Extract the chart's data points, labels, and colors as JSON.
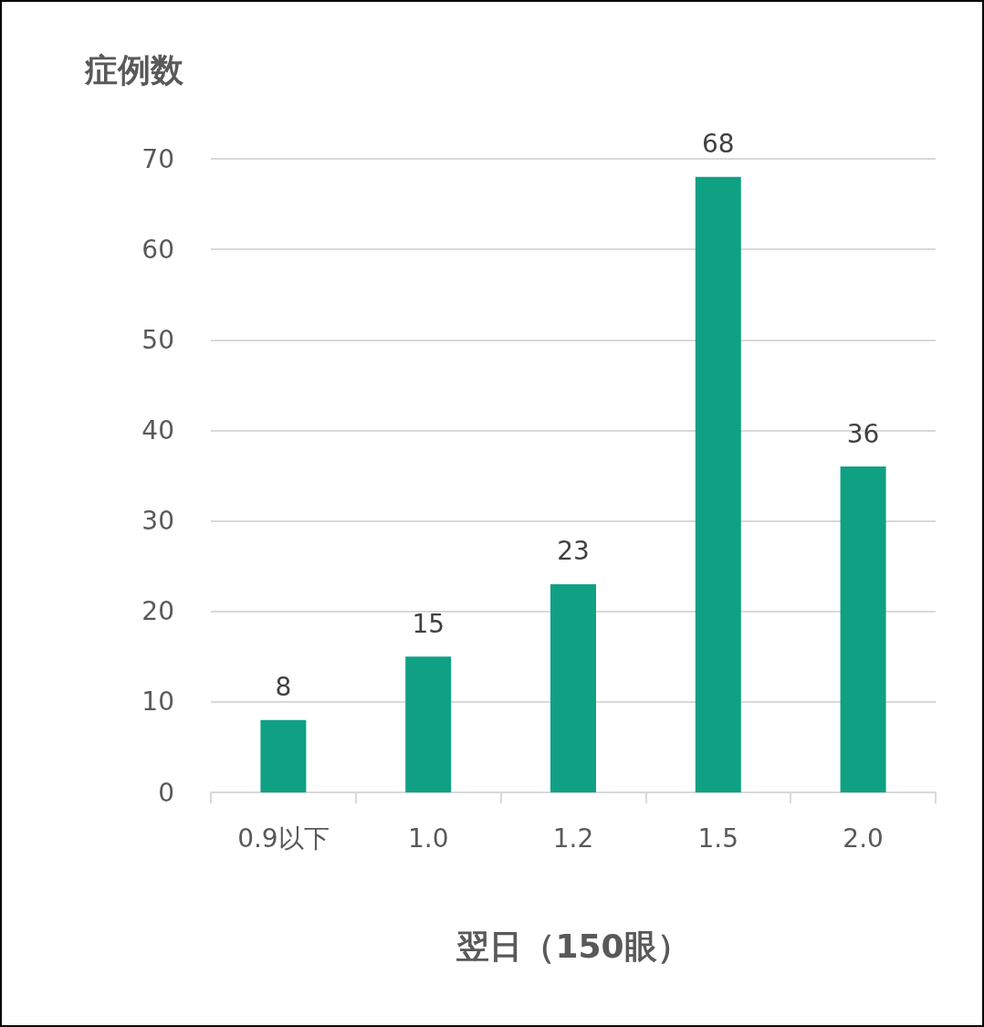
{
  "chart_data": {
    "type": "bar",
    "ylabel": "症例数",
    "xlabel": "翌日（150眼）",
    "categories": [
      "0.9以下",
      "1.0",
      "1.2",
      "1.5",
      "2.0"
    ],
    "values": [
      8,
      15,
      23,
      68,
      36
    ],
    "color": "#10a084",
    "ylim": [
      0,
      70
    ],
    "yticks": [
      0,
      10,
      20,
      30,
      40,
      50,
      60,
      70
    ],
    "grid": "y",
    "data_labels": true
  }
}
